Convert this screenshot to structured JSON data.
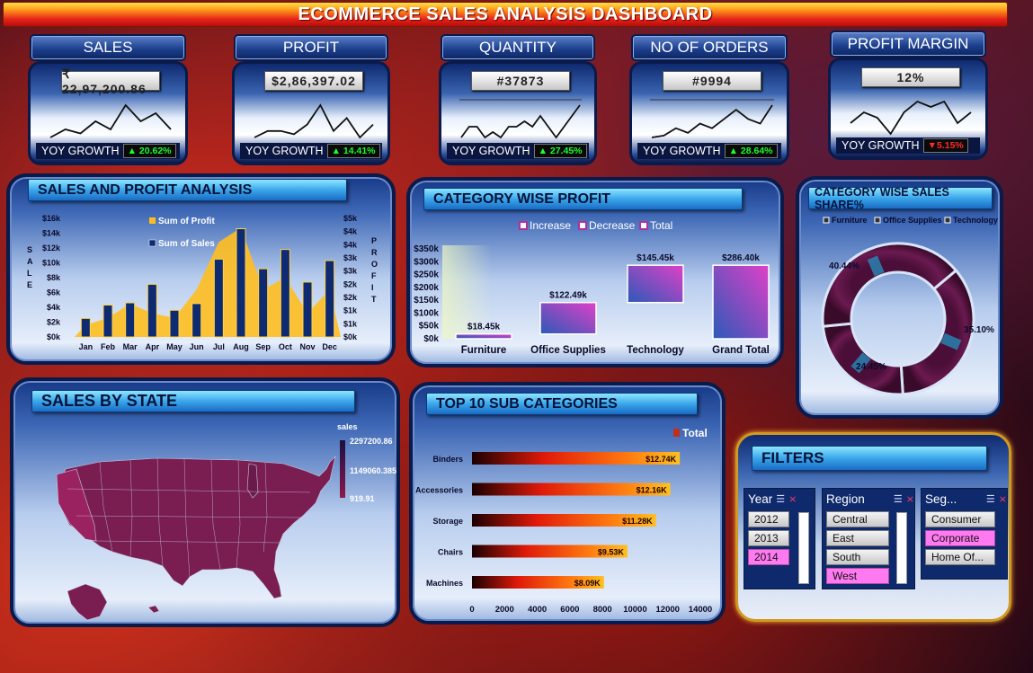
{
  "title": "ECOMMERCE SALES ANALYSIS DASHBOARD",
  "kpis": [
    {
      "label": "SALES",
      "value": "₹ 22,97,200.86",
      "yoy_label": "YOY GROWTH",
      "yoy": "▲ 20.62%",
      "yoy_color": "#1aff2a",
      "spark": [
        3,
        4,
        3.5,
        5,
        4,
        7,
        5,
        6,
        4
      ]
    },
    {
      "label": "PROFIT",
      "value": "$2,86,397.02",
      "yoy_label": "YOY GROWTH",
      "yoy": "▲ 14.41%",
      "yoy_color": "#1aff2a",
      "spark": [
        3,
        4,
        4,
        3.5,
        5,
        8,
        4,
        6,
        3,
        5
      ]
    },
    {
      "label": "QUANTITY",
      "value": "#37873",
      "yoy_label": "YOY GROWTH",
      "yoy": "▲ 27.45%",
      "yoy_color": "#1aff2a",
      "spark": [
        2,
        3,
        3,
        2,
        2.5,
        2,
        3,
        3,
        3.5,
        3,
        4,
        3,
        2,
        3,
        4,
        5
      ]
    },
    {
      "label": "NO OF ORDERS",
      "value": "#9994",
      "yoy_label": "YOY GROWTH",
      "yoy": "▲ 28.64%",
      "yoy_color": "#1aff2a",
      "spark": [
        2,
        2.2,
        3,
        2.5,
        3.5,
        3,
        4,
        5,
        4,
        3.5,
        5.5
      ]
    },
    {
      "label": "PROFIT MARGIN",
      "value": "12%",
      "yoy_label": "YOY GROWTH",
      "yoy": "▼5.15%",
      "yoy_color": "#ff2a2a",
      "spark": [
        4,
        5,
        4.5,
        3,
        5,
        6,
        5.5,
        6,
        4,
        5
      ]
    }
  ],
  "sales_profit": {
    "title": "SALES AND PROFIT ANALYSIS",
    "legend_profit": "Sum of Profit",
    "legend_sales": "Sum of Sales",
    "left_axis_label": "SALE",
    "right_axis_label": "PROFIT",
    "profit_color": "#ffbe20",
    "sales_color": "#0e2a70",
    "chart_data": {
      "type": "bar",
      "categories": [
        "Jan",
        "Feb",
        "Mar",
        "Apr",
        "May",
        "Jun",
        "Jul",
        "Aug",
        "Sep",
        "Oct",
        "Nov",
        "Dec"
      ],
      "series": [
        {
          "name": "Sum of Sales",
          "values": [
            2500,
            4300,
            4600,
            7100,
            3600,
            4500,
            10500,
            14600,
            9200,
            11800,
            7400,
            10300
          ]
        },
        {
          "name": "Sum of Profit",
          "values": [
            500,
            800,
            1400,
            1000,
            800,
            2000,
            4000,
            4600,
            2000,
            2500,
            1000,
            2000
          ]
        }
      ],
      "left_ticks": [
        "$0k",
        "$2k",
        "$4k",
        "$6k",
        "$8k",
        "$10k",
        "$12k",
        "$14k",
        "$16k"
      ],
      "right_ticks": [
        "$0k",
        "$1k",
        "$1k",
        "$2k",
        "$2k",
        "$3k",
        "$3k",
        "$4k",
        "$4k",
        "$5k"
      ],
      "ylim_left": [
        0,
        16000
      ],
      "ylim_right": [
        0,
        5000
      ]
    }
  },
  "category_profit": {
    "title": "CATEGORY  WISE PROFIT",
    "legend": [
      "Increase",
      "Decrease",
      "Total"
    ],
    "chart_data": {
      "type": "bar",
      "categories": [
        "Furniture",
        "Office Supplies",
        "Technology",
        "Grand Total"
      ],
      "values": [
        18.45,
        122.49,
        145.45,
        286.4
      ],
      "labels": [
        "$18.45k",
        "$122.49k",
        "$145.45k",
        "$286.40k"
      ],
      "y_ticks": [
        "$0k",
        "$50k",
        "$100k",
        "$150k",
        "$200k",
        "$250k",
        "$300k",
        "$350k"
      ],
      "ylim": [
        0,
        350
      ]
    }
  },
  "category_share": {
    "title": "CATEGORY WISE SALES SHARE%",
    "legend": [
      "Furniture",
      "Office Supplies",
      "Technology"
    ],
    "chart_data": {
      "type": "pie",
      "categories": [
        "Technology",
        "Furniture",
        "Office Supplies"
      ],
      "values": [
        35.1,
        24.45,
        40.44
      ],
      "labels": [
        "35.10%",
        "24.45%",
        "40.44%"
      ]
    }
  },
  "sales_state": {
    "title": "SALES  BY  STATE",
    "legend_title": "sales",
    "legend_values": [
      "2297200.86",
      "1149060.385",
      "919.91"
    ]
  },
  "top_sub": {
    "title": "TOP 10 SUB CATEGORIES",
    "legend": "Total",
    "chart_data": {
      "type": "bar",
      "categories": [
        "Binders",
        "Accessories",
        "Storage",
        "Chairs",
        "Machines"
      ],
      "values": [
        12.74,
        12.16,
        11.28,
        9.53,
        8.09
      ],
      "labels": [
        "$12.74K",
        "$12.16K",
        "$11.28K",
        "$9.53K",
        "$8.09K"
      ],
      "x_ticks": [
        "0",
        "2000",
        "4000",
        "6000",
        "8000",
        "10000",
        "12000",
        "14000"
      ],
      "xlim": [
        0,
        14000
      ]
    }
  },
  "filters": {
    "title": "FILTERS",
    "year": {
      "label": "Year",
      "options": [
        "2012",
        "2013",
        "2014"
      ],
      "selected": "2014"
    },
    "region": {
      "label": "Region",
      "options": [
        "Central",
        "East",
        "South",
        "West"
      ],
      "selected": "West"
    },
    "segment": {
      "label": "Seg...",
      "options": [
        "Consumer",
        "Corporate",
        "Home Of..."
      ],
      "selected": "Corporate"
    }
  }
}
